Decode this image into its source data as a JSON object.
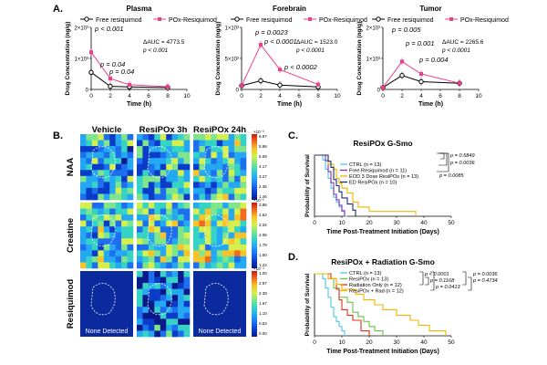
{
  "panels": {
    "A": "A.",
    "B": "B.",
    "C": "C.",
    "D": "D."
  },
  "colors": {
    "free": "#000000",
    "pox": "#e9408e",
    "ctrl": "#4fc6e6",
    "free_resiq": "#7b2fbe",
    "eod": "#f3b400",
    "ed": "#1f2d6e",
    "resipox_d": "#6cc04a",
    "rad_only": "#e0331c",
    "resipox_rad": "#f3b400"
  },
  "chart_data": [
    {
      "id": "plasma",
      "type": "line",
      "title": "Plasma",
      "xlabel": "Time (h)",
      "ylabel": "Drug Concentration (ng/g)",
      "xlim": [
        0,
        10
      ],
      "xticks": [
        "0",
        "2",
        "4",
        "6",
        "8",
        "10"
      ],
      "ylim": [
        0,
        2000
      ],
      "yticks": [
        "0",
        "1×10³",
        "2×10³"
      ],
      "legend": [
        "Free resiquimod",
        "POx-Resiquimod"
      ],
      "x": [
        0,
        2,
        4,
        8
      ],
      "series": [
        {
          "name": "Free resiquimod",
          "values": [
            550,
            100,
            80,
            60
          ]
        },
        {
          "name": "POx-Resiquimod",
          "values": [
            1200,
            350,
            150,
            90
          ]
        }
      ],
      "annotations": [
        "p < 0.001",
        "p = 0.04",
        "p = 0.04",
        "ΔAUC = 4773.5",
        "p < 0.001"
      ]
    },
    {
      "id": "forebrain",
      "type": "line",
      "title": "Forebrain",
      "xlabel": "Time (h)",
      "ylabel": "Drug Concentration (ng/g)",
      "xlim": [
        0,
        10
      ],
      "xticks": [
        "0",
        "2",
        "4",
        "6",
        "8",
        "10"
      ],
      "ylim": [
        0,
        1000
      ],
      "yticks": [
        "0",
        "5×10²",
        "1×10³"
      ],
      "legend": [
        "Free resiquimod",
        "POx-Resiquimod"
      ],
      "x": [
        0,
        2,
        4,
        8
      ],
      "series": [
        {
          "name": "Free resiquimod",
          "values": [
            60,
            140,
            70,
            40
          ]
        },
        {
          "name": "POx-Resiquimod",
          "values": [
            60,
            720,
            320,
            80
          ]
        }
      ],
      "annotations": [
        "p = 0.0023",
        "p < 0.0001",
        "p < 0.0002",
        "ΔAUC = 1523.0",
        "p < 0.0001"
      ]
    },
    {
      "id": "tumor",
      "type": "line",
      "title": "Tumor",
      "xlabel": "Time (h)",
      "ylabel": "Drug Concentration (ng/g)",
      "xlim": [
        0,
        10
      ],
      "xticks": [
        "0",
        "2",
        "4",
        "6",
        "8",
        "10"
      ],
      "ylim": [
        0,
        2000
      ],
      "yticks": [
        "0",
        "1×10³",
        "2×10³"
      ],
      "legend": [
        "Free resiquimod",
        "POx-Resiquimod"
      ],
      "x": [
        0,
        2,
        4,
        8
      ],
      "series": [
        {
          "name": "Free resiquimod",
          "values": [
            60,
            450,
            250,
            200
          ]
        },
        {
          "name": "POx-Resiquimod",
          "values": [
            60,
            900,
            500,
            200
          ]
        }
      ],
      "annotations": [
        "p = 0.005",
        "p = 0.001",
        "p = 0.004",
        "ΔAUC = 2265.6",
        "p < 0.0001"
      ]
    },
    {
      "id": "survival_c",
      "type": "line",
      "title": "ResiPOx G-Smo",
      "xlabel": "Time Post-Treatment Initiation (Days)",
      "ylabel": "Probability of Survival",
      "xlim": [
        0,
        50
      ],
      "xticks": [
        "0",
        "10",
        "20",
        "30",
        "40",
        "50"
      ],
      "ylim": [
        0,
        100
      ],
      "yticks": [],
      "series": [
        {
          "name": "CTRL (n = 13)",
          "x": [
            0,
            3,
            4,
            5,
            6,
            7,
            8,
            9,
            10,
            11,
            12
          ],
          "values": [
            100,
            92,
            77,
            62,
            46,
            31,
            23,
            15,
            8,
            0,
            0
          ]
        },
        {
          "name": "Free Resiquimod (n = 11)",
          "x": [
            0,
            4,
            5,
            6,
            7,
            8,
            9,
            10,
            11
          ],
          "values": [
            100,
            91,
            73,
            55,
            36,
            27,
            18,
            9,
            0
          ]
        },
        {
          "name": "EOD 3 Dose ResiPOx (n = 13)",
          "x": [
            0,
            5,
            7,
            8,
            9,
            10,
            12,
            14,
            16,
            20,
            37
          ],
          "values": [
            100,
            85,
            77,
            62,
            54,
            46,
            38,
            23,
            15,
            8,
            0
          ]
        },
        {
          "name": "ED ResiPOx (n = 10)",
          "x": [
            0,
            5,
            6,
            7,
            8,
            9,
            10,
            12,
            14,
            15
          ],
          "values": [
            100,
            90,
            80,
            60,
            50,
            40,
            30,
            20,
            10,
            0
          ]
        }
      ],
      "pvalues": [
        "p = 0.5849",
        "p = 0.0036",
        "p = 0.0085"
      ]
    },
    {
      "id": "survival_d",
      "type": "line",
      "title": "ResiPOx + Radiation G-Smo",
      "xlabel": "Time Post-Treatment Initiation (Days)",
      "ylabel": "Probability of Survival",
      "xlim": [
        0,
        50
      ],
      "xticks": [
        "0",
        "10",
        "20",
        "30",
        "40",
        "50"
      ],
      "ylim": [
        0,
        100
      ],
      "yticks": [],
      "series": [
        {
          "name": "CTRL (n = 13)",
          "x": [
            0,
            3,
            4,
            5,
            6,
            7,
            8,
            9,
            10,
            11
          ],
          "values": [
            100,
            92,
            77,
            62,
            46,
            31,
            23,
            15,
            8,
            0
          ]
        },
        {
          "name": "ResiPOx (n = 13)",
          "x": [
            0,
            5,
            7,
            9,
            12,
            14,
            16,
            18,
            20,
            22,
            25
          ],
          "values": [
            100,
            92,
            77,
            62,
            54,
            38,
            31,
            23,
            15,
            8,
            0
          ]
        },
        {
          "name": "Radiation Only (n = 12)",
          "x": [
            0,
            6,
            8,
            9,
            10,
            12,
            14,
            17,
            20
          ],
          "values": [
            100,
            92,
            75,
            58,
            42,
            33,
            25,
            8,
            0
          ]
        },
        {
          "name": "ResiPOx + Rad (n = 12)",
          "x": [
            0,
            5,
            8,
            10,
            15,
            18,
            22,
            25,
            30,
            35,
            38,
            42,
            45,
            48
          ],
          "values": [
            100,
            92,
            83,
            75,
            67,
            58,
            50,
            42,
            33,
            25,
            17,
            8,
            8,
            0
          ]
        }
      ],
      "pvalues": [
        "p < 0.0001",
        "p = 0.1168",
        "p = 0.0413",
        "p = 0.0036",
        "p = 0.4734"
      ]
    }
  ],
  "imaging": {
    "columns": [
      "Vehicle",
      "ResiPOx 3h",
      "ResiPOx 24h"
    ],
    "rows": [
      "NAA",
      "Creatine",
      "Resiquimod"
    ],
    "none_label": "None Detected",
    "scales": [
      {
        "exp": "×10⁻³",
        "ticks": [
          "6.87",
          "5.98",
          "5.59",
          "4.17",
          "3.27",
          "2.36",
          "1.46"
        ]
      },
      {
        "exp": "×10⁻³",
        "ticks": [
          "2.86",
          "2.62",
          "2.34",
          "2.06",
          "1.78",
          "1.50",
          "1.22"
        ]
      },
      {
        "exp": "×10⁻⁴",
        "ticks": [
          "1.00",
          "2.97",
          "2.39",
          "1.67",
          "1.10",
          "0.53",
          "0.00"
        ]
      }
    ]
  }
}
